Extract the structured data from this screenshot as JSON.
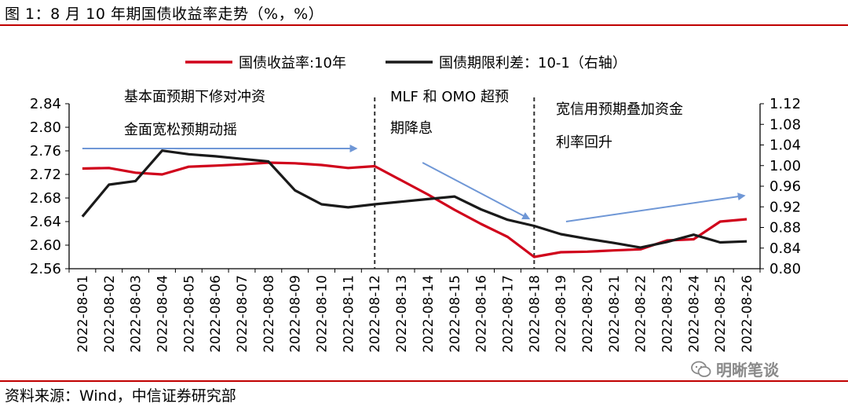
{
  "header": {
    "title": "图 1：8 月 10 年期国债收益率走势（%，%）"
  },
  "footer": {
    "source": "资料来源：Wind，中信证券研究部"
  },
  "watermark": {
    "text": "明晰笔谈"
  },
  "colors": {
    "yield_line": "#d0021b",
    "spread_line": "#1a1a1a",
    "arrow": "#6f97d6",
    "rule": "#c00000",
    "dash": "#333333"
  },
  "chart_data": {
    "type": "line",
    "categories": [
      "2022-08-01",
      "2022-08-02",
      "2022-08-03",
      "2022-08-04",
      "2022-08-05",
      "2022-08-06",
      "2022-08-07",
      "2022-08-08",
      "2022-08-09",
      "2022-08-10",
      "2022-08-11",
      "2022-08-12",
      "2022-08-13",
      "2022-08-14",
      "2022-08-15",
      "2022-08-16",
      "2022-08-17",
      "2022-08-18",
      "2022-08-19",
      "2022-08-20",
      "2022-08-21",
      "2022-08-22",
      "2022-08-23",
      "2022-08-24",
      "2022-08-25",
      "2022-08-26"
    ],
    "series": [
      {
        "name": "国债收益率:10年",
        "axis": "left",
        "color": "#d0021b",
        "values": [
          2.73,
          2.731,
          2.723,
          2.72,
          2.733,
          2.735,
          2.737,
          2.74,
          2.739,
          2.736,
          2.731,
          2.734,
          2.71,
          2.686,
          2.66,
          2.636,
          2.614,
          2.58,
          2.588,
          2.589,
          2.591,
          2.593,
          2.608,
          2.61,
          2.64,
          2.644
        ]
      },
      {
        "name": "国债期限利差：10-1（右轴）",
        "axis": "right",
        "color": "#1a1a1a",
        "values": [
          0.901,
          0.963,
          0.97,
          1.029,
          1.022,
          1.018,
          1.013,
          1.008,
          0.952,
          0.925,
          0.919,
          0.925,
          0.93,
          0.935,
          0.94,
          0.915,
          0.895,
          0.883,
          0.867,
          0.858,
          0.85,
          0.841,
          0.852,
          0.866,
          0.851,
          0.853
        ]
      }
    ],
    "left_axis": {
      "min": 2.56,
      "max": 2.84,
      "ticks": [
        "2.56",
        "2.60",
        "2.64",
        "2.68",
        "2.72",
        "2.76",
        "2.80",
        "2.84"
      ]
    },
    "right_axis": {
      "min": 0.8,
      "max": 1.12,
      "ticks": [
        "0.80",
        "0.84",
        "0.88",
        "0.92",
        "0.96",
        "1.00",
        "1.04",
        "1.08",
        "1.12"
      ]
    },
    "legend": {
      "placement": "top"
    },
    "grid": false,
    "dividers_after_category_index": [
      11,
      17
    ],
    "annotations": [
      {
        "lines": [
          "基本面预期下修对冲资",
          "金面宽松预期动摇"
        ]
      },
      {
        "lines": [
          "MLF 和 OMO 超预",
          "期降息"
        ]
      },
      {
        "lines": [
          "宽信用预期叠加资金",
          "利率回升"
        ]
      }
    ],
    "arrows": [
      {
        "from": [
          0,
          2.764
        ],
        "to": [
          10.3,
          2.764
        ]
      },
      {
        "from": [
          12.8,
          2.74
        ],
        "to": [
          16.8,
          2.645
        ]
      },
      {
        "from": [
          18.2,
          2.64
        ],
        "to": [
          24.9,
          2.684
        ]
      }
    ]
  }
}
